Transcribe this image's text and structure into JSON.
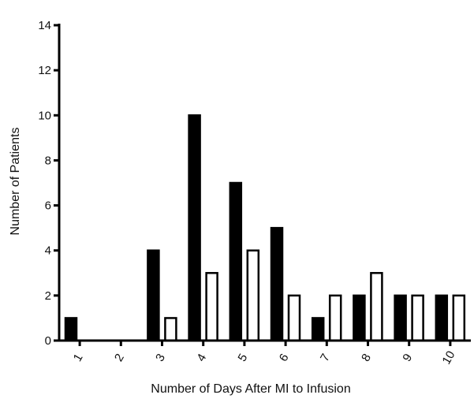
{
  "chart_data": {
    "type": "bar",
    "xlabel": "Number of Days After MI to Infusion",
    "ylabel": "Number of Patients",
    "ylim": [
      0,
      14
    ],
    "yticks": [
      0,
      2,
      4,
      6,
      8,
      10,
      12,
      14
    ],
    "categories": [
      "1",
      "2",
      "3",
      "4",
      "5",
      "6",
      "7",
      "8",
      "9",
      "10"
    ],
    "series": [
      {
        "values": [
          1,
          0,
          4,
          10,
          7,
          5,
          1,
          2,
          2,
          2
        ],
        "color": "#000000"
      },
      {
        "values": [
          0,
          0,
          1,
          3,
          4,
          2,
          2,
          3,
          2,
          2
        ],
        "color": "#ffffff"
      }
    ],
    "grid": false,
    "legend": "none"
  }
}
